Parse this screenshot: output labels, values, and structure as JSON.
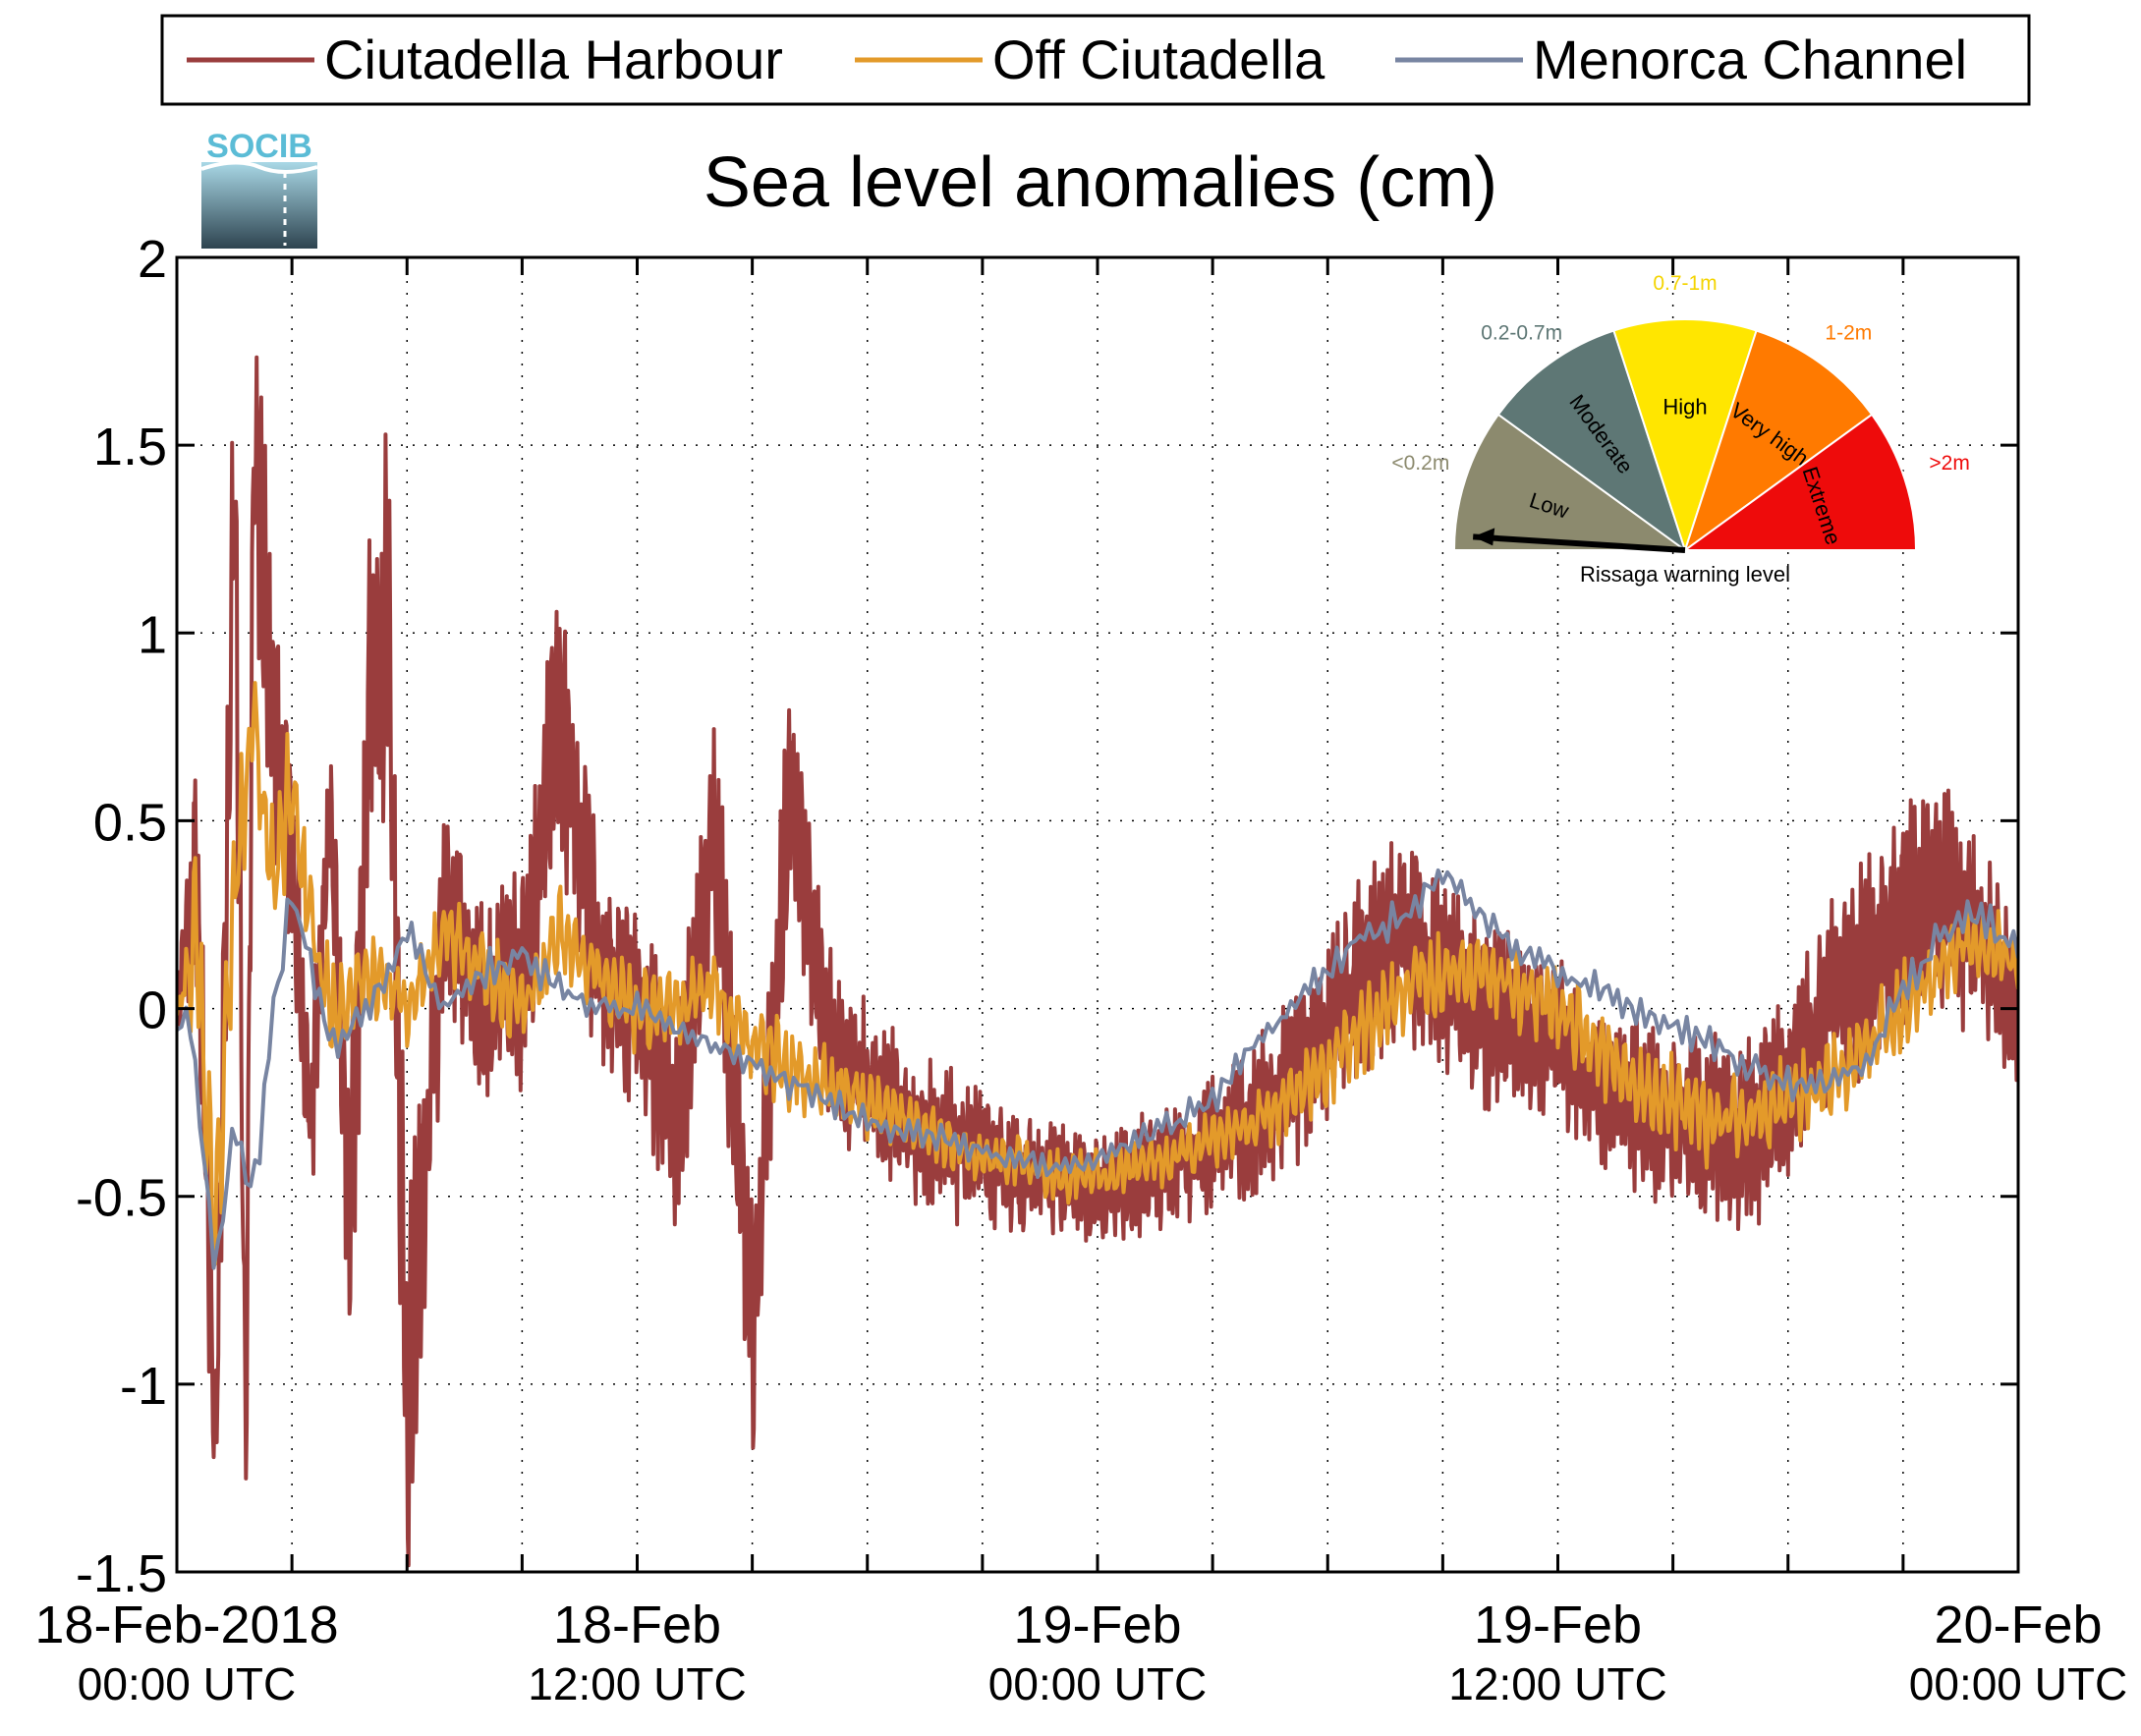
{
  "chart_data": {
    "type": "line",
    "title": "Sea level anomalies (cm)",
    "ylim": [
      -1.5,
      2
    ],
    "yticks": [
      -1.5,
      -1,
      -0.5,
      0,
      0.5,
      1,
      1.5,
      2
    ],
    "ytick_labels": [
      "-1.5",
      "-1",
      "-0.5",
      "0",
      "0.5",
      "1",
      "1.5",
      "2"
    ],
    "xlim_hours": [
      0,
      48
    ],
    "x_unit": "hours since 18-Feb-2018 00:00 UTC",
    "xticks_hours": [
      0,
      3,
      6,
      9,
      12,
      15,
      18,
      21,
      24,
      27,
      30,
      33,
      36,
      39,
      42,
      45,
      48
    ],
    "xtick_labels": [
      {
        "hour": 0,
        "line1": "18-Feb-2018",
        "line2": "00:00 UTC"
      },
      {
        "hour": 12,
        "line1": "18-Feb",
        "line2": "12:00 UTC"
      },
      {
        "hour": 24,
        "line1": "19-Feb",
        "line2": "00:00 UTC"
      },
      {
        "hour": 36,
        "line1": "19-Feb",
        "line2": "12:00 UTC"
      },
      {
        "hour": 48,
        "line1": "20-Feb",
        "line2": "00:00 UTC"
      }
    ],
    "grid": true,
    "legend_position": "top",
    "series": [
      {
        "name": "Ciutadella Harbour",
        "color": "#9a3d3d",
        "x": [
          0,
          0.5,
          1,
          1.5,
          1.8,
          2,
          2.5,
          3,
          3.5,
          4,
          4.5,
          5,
          5.5,
          6,
          7,
          8,
          9,
          10,
          11,
          12,
          13,
          14,
          15,
          16,
          17,
          18,
          19,
          20,
          21,
          22,
          23,
          24,
          25,
          26,
          27,
          28,
          29,
          30,
          31,
          32,
          33,
          34,
          35,
          36,
          37,
          38,
          39,
          40,
          41,
          42,
          43,
          44,
          45,
          46,
          47,
          48
        ],
        "y": [
          0.0,
          0.4,
          -1.2,
          1.5,
          -1.2,
          1.55,
          0.8,
          0.4,
          -0.3,
          0.5,
          -0.6,
          0.8,
          1.1,
          -1.1,
          0.3,
          0.0,
          0.1,
          0.8,
          0.1,
          0.0,
          -0.3,
          0.5,
          -0.9,
          0.6,
          -0.1,
          -0.2,
          -0.3,
          -0.35,
          -0.4,
          -0.45,
          -0.45,
          -0.5,
          -0.45,
          -0.4,
          -0.35,
          -0.3,
          -0.2,
          -0.05,
          0.1,
          0.2,
          0.1,
          0.0,
          -0.05,
          -0.1,
          -0.2,
          -0.25,
          -0.3,
          -0.3,
          -0.35,
          -0.2,
          0.0,
          0.1,
          0.25,
          0.3,
          0.2,
          0.0
        ],
        "amplitude": [
          0.05,
          0.35,
          0.3,
          0.5,
          0.3,
          0.4,
          0.35,
          0.3,
          0.25,
          0.3,
          0.35,
          0.5,
          0.55,
          0.5,
          0.3,
          0.25,
          0.3,
          0.4,
          0.3,
          0.25,
          0.3,
          0.35,
          0.35,
          0.3,
          0.25,
          0.2,
          0.2,
          0.2,
          0.18,
          0.15,
          0.15,
          0.15,
          0.15,
          0.18,
          0.2,
          0.2,
          0.22,
          0.25,
          0.28,
          0.28,
          0.25,
          0.25,
          0.22,
          0.22,
          0.22,
          0.22,
          0.22,
          0.25,
          0.25,
          0.25,
          0.25,
          0.28,
          0.3,
          0.3,
          0.28,
          0.25
        ]
      },
      {
        "name": "Off Ciutadella",
        "color": "#e39a2a",
        "x": [
          0,
          0.5,
          1,
          1.5,
          2,
          2.5,
          3,
          3.5,
          4,
          5,
          6,
          7,
          8,
          9,
          10,
          11,
          12,
          13,
          14,
          15,
          16,
          17,
          18,
          19,
          20,
          21,
          22,
          23,
          24,
          25,
          26,
          27,
          28,
          29,
          30,
          31,
          32,
          33,
          34,
          35,
          36,
          37,
          38,
          39,
          40,
          41,
          42,
          43,
          44,
          45,
          46,
          47,
          48
        ],
        "y": [
          0.0,
          0.2,
          -0.6,
          0.3,
          0.8,
          0.3,
          0.6,
          0.2,
          0.0,
          0.1,
          0.0,
          0.2,
          0.1,
          0.0,
          0.2,
          0.1,
          0.0,
          0.0,
          0.05,
          -0.1,
          -0.15,
          -0.2,
          -0.25,
          -0.3,
          -0.35,
          -0.4,
          -0.4,
          -0.45,
          -0.45,
          -0.42,
          -0.4,
          -0.35,
          -0.3,
          -0.25,
          -0.15,
          -0.05,
          0.05,
          0.1,
          0.1,
          0.05,
          0.0,
          -0.1,
          -0.2,
          -0.25,
          -0.3,
          -0.3,
          -0.25,
          -0.2,
          -0.1,
          0.0,
          0.1,
          0.2,
          0.1
        ],
        "amplitude": [
          0.05,
          0.25,
          0.2,
          0.25,
          0.2,
          0.25,
          0.2,
          0.15,
          0.15,
          0.12,
          0.12,
          0.12,
          0.12,
          0.12,
          0.15,
          0.12,
          0.12,
          0.12,
          0.12,
          0.12,
          0.12,
          0.1,
          0.1,
          0.08,
          0.08,
          0.08,
          0.07,
          0.07,
          0.07,
          0.07,
          0.07,
          0.08,
          0.08,
          0.1,
          0.12,
          0.12,
          0.12,
          0.12,
          0.12,
          0.12,
          0.12,
          0.12,
          0.12,
          0.12,
          0.12,
          0.12,
          0.12,
          0.12,
          0.12,
          0.12,
          0.12,
          0.12,
          0.1
        ]
      },
      {
        "name": "Menorca Channel",
        "color": "#7885a2",
        "x": [
          0,
          0.3,
          0.5,
          1,
          1.5,
          2,
          2.5,
          3,
          4,
          5,
          6,
          7,
          8,
          9,
          10,
          11,
          12,
          13,
          14,
          15,
          16,
          17,
          18,
          19,
          20,
          21,
          22,
          23,
          24,
          25,
          26,
          27,
          28,
          29,
          30,
          31,
          32,
          33,
          34,
          35,
          36,
          37,
          38,
          39,
          40,
          41,
          42,
          43,
          44,
          45,
          46,
          47,
          48
        ],
        "y": [
          -0.05,
          0.0,
          -0.2,
          -0.7,
          -0.3,
          -0.5,
          0.0,
          0.3,
          -0.1,
          0.0,
          0.2,
          0.0,
          0.1,
          0.15,
          0.05,
          0.0,
          0.0,
          -0.05,
          -0.1,
          -0.15,
          -0.2,
          -0.25,
          -0.3,
          -0.33,
          -0.35,
          -0.38,
          -0.4,
          -0.42,
          -0.4,
          -0.35,
          -0.3,
          -0.25,
          -0.1,
          0.0,
          0.1,
          0.2,
          0.25,
          0.35,
          0.25,
          0.15,
          0.1,
          0.05,
          0.0,
          -0.05,
          -0.1,
          -0.15,
          -0.2,
          -0.2,
          -0.15,
          0.05,
          0.2,
          0.25,
          0.15
        ],
        "amplitude": [
          0.02,
          0.05,
          0.05,
          0.05,
          0.06,
          0.08,
          0.08,
          0.06,
          0.05,
          0.05,
          0.05,
          0.05,
          0.05,
          0.05,
          0.05,
          0.04,
          0.04,
          0.04,
          0.04,
          0.04,
          0.04,
          0.04,
          0.04,
          0.04,
          0.04,
          0.04,
          0.04,
          0.04,
          0.04,
          0.04,
          0.04,
          0.04,
          0.04,
          0.04,
          0.04,
          0.05,
          0.05,
          0.05,
          0.05,
          0.05,
          0.05,
          0.05,
          0.05,
          0.05,
          0.05,
          0.05,
          0.05,
          0.05,
          0.05,
          0.05,
          0.05,
          0.05,
          0.05
        ]
      }
    ]
  },
  "logo": {
    "text": "SOCIB",
    "text_color": "#5bbcd6",
    "top_color": "#a9d8e6",
    "bottom_color": "#2e4450"
  },
  "gauge": {
    "caption": "Rissaga warning level",
    "pointer_level": "Low",
    "segments": [
      {
        "label": "Low",
        "range": "<0.2m",
        "color": "#8c8a6e",
        "range_color": "#8c8a6e"
      },
      {
        "label": "Moderate",
        "range": "0.2-0.7m",
        "color": "#5e7775",
        "range_color": "#5e7775"
      },
      {
        "label": "High",
        "range": "0.7-1m",
        "color": "#ffe600",
        "range_color": "#f4d400"
      },
      {
        "label": "Very high",
        "range": "1-2m",
        "color": "#ff7a00",
        "range_color": "#ff7a00"
      },
      {
        "label": "Extreme",
        "range": ">2m",
        "color": "#ee0b0b",
        "range_color": "#ee0b0b"
      }
    ]
  }
}
